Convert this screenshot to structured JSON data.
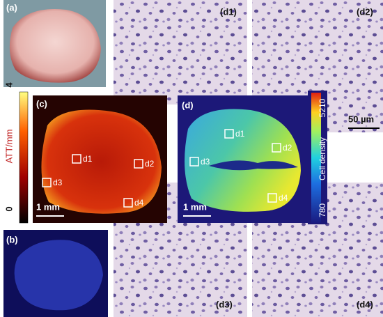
{
  "panels": {
    "a": "(a)",
    "b": "(b)",
    "c": "(c)",
    "d": "(d)",
    "d1": "(d1)",
    "d2": "(d2)",
    "d3": "(d3)",
    "d4": "(d4)"
  },
  "map_c": {
    "rois": [
      "d1",
      "d2",
      "d3",
      "d4"
    ],
    "scale_bar": "1 mm"
  },
  "map_d": {
    "rois": [
      "d1",
      "d2",
      "d3",
      "d4"
    ],
    "scale_bar": "1 mm"
  },
  "histology_scale_bar": "50 µm",
  "colorbar_att": {
    "label": "ATT/mm",
    "ticks": [
      0,
      4
    ]
  },
  "colorbar_density": {
    "label": "Cell density",
    "ticks": [
      780,
      5210
    ]
  }
}
